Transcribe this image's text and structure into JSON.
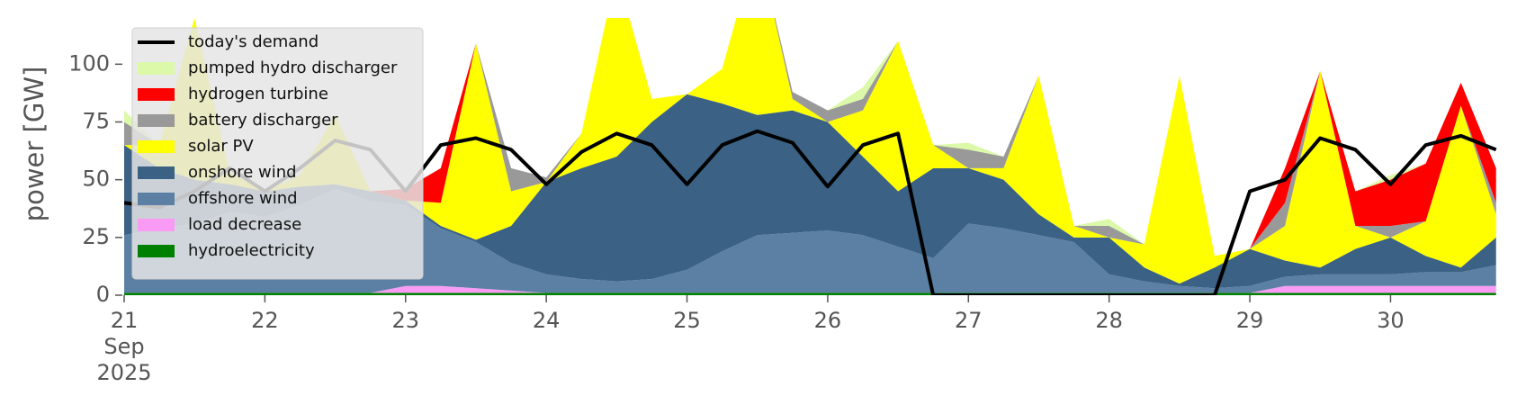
{
  "chart_data": {
    "type": "area",
    "y_label": "power [GW]",
    "legend": "upper left",
    "xlim": [
      21,
      30.95
    ],
    "xticks": [
      {
        "value": 21,
        "label": "21\nSep\n2025"
      },
      22,
      23,
      24,
      25,
      26,
      27,
      28,
      29,
      30
    ],
    "ylim": [
      0,
      120
    ],
    "yticks": [
      0,
      25,
      50,
      75,
      100
    ],
    "x": [
      21,
      21.25,
      21.5,
      21.75,
      22,
      22.25,
      22.5,
      22.75,
      23,
      23.25,
      23.5,
      23.75,
      24,
      24.25,
      24.5,
      24.75,
      25,
      25.25,
      25.5,
      25.75,
      26,
      26.25,
      26.5,
      26.75,
      27,
      27.25,
      27.5,
      27.75,
      28,
      28.25,
      28.5,
      28.75,
      29,
      29.25,
      29.5,
      29.75,
      30,
      30.25,
      30.5,
      30.75
    ],
    "series": [
      {
        "name": "hydroelectricity",
        "color": "#008000",
        "style": "area",
        "values": [
          1,
          1,
          1,
          1,
          1,
          1,
          1,
          1,
          1,
          1,
          1,
          1,
          1,
          1,
          1,
          1,
          1,
          1,
          1,
          1,
          1,
          1,
          1,
          1,
          1,
          1,
          1,
          1,
          1,
          1,
          1,
          1,
          1,
          1,
          1,
          1,
          1,
          1,
          1,
          1
        ]
      },
      {
        "name": "load decrease",
        "color": "#f99bf5",
        "style": "area",
        "values": [
          0,
          0,
          0,
          0,
          0,
          0,
          0,
          0,
          3,
          3,
          2,
          1,
          0,
          0,
          0,
          0,
          0,
          0,
          0,
          0,
          0,
          0,
          0,
          0,
          0,
          0,
          0,
          0,
          0,
          0,
          0,
          0,
          0,
          3,
          3,
          3,
          3,
          3,
          3,
          3
        ]
      },
      {
        "name": "offshore wind",
        "color": "#5b80a3",
        "style": "area",
        "values": [
          25,
          28,
          30,
          35,
          33,
          38,
          45,
          40,
          35,
          25,
          20,
          12,
          8,
          6,
          5,
          6,
          10,
          18,
          25,
          26,
          27,
          25,
          20,
          15,
          30,
          28,
          25,
          22,
          8,
          5,
          3,
          2,
          3,
          4,
          5,
          5,
          5,
          6,
          6,
          9
        ]
      },
      {
        "name": "onshore wind",
        "color": "#3b6284",
        "style": "area",
        "values": [
          39,
          26,
          19,
          12,
          11,
          8,
          2,
          4,
          2,
          1,
          1,
          16,
          40,
          48,
          54,
          68,
          76,
          64,
          52,
          53,
          47,
          34,
          24,
          39,
          24,
          21,
          9,
          2,
          16,
          6,
          1,
          9,
          16,
          7,
          3,
          11,
          16,
          7,
          2,
          12
        ]
      },
      {
        "name": "solar PV",
        "color": "#ffff00",
        "style": "area",
        "values": [
          0,
          10,
          70,
          5,
          0,
          5,
          30,
          0,
          0,
          10,
          85,
          15,
          0,
          15,
          80,
          10,
          0,
          15,
          75,
          5,
          0,
          20,
          65,
          10,
          0,
          5,
          60,
          5,
          0,
          10,
          90,
          5,
          0,
          15,
          85,
          10,
          0,
          15,
          70,
          10
        ]
      },
      {
        "name": "battery discharger",
        "color": "#999999",
        "style": "area",
        "values": [
          10,
          0,
          0,
          0,
          0,
          0,
          0,
          0,
          0,
          0,
          0,
          10,
          2,
          0,
          0,
          0,
          0,
          0,
          0,
          3,
          5,
          5,
          0,
          0,
          8,
          5,
          0,
          0,
          5,
          0,
          0,
          0,
          0,
          10,
          0,
          0,
          5,
          0,
          0,
          5
        ]
      },
      {
        "name": "hydrogen turbine",
        "color": "#ff0000",
        "style": "area",
        "values": [
          0,
          0,
          0,
          0,
          0,
          0,
          0,
          0,
          5,
          15,
          0,
          0,
          0,
          0,
          0,
          0,
          0,
          0,
          0,
          0,
          0,
          0,
          0,
          0,
          0,
          0,
          0,
          0,
          0,
          0,
          0,
          0,
          0,
          15,
          0,
          15,
          20,
          25,
          10,
          15
        ]
      },
      {
        "name": "pumped hydro discharger",
        "color": "#dcf9a9",
        "style": "area",
        "values": [
          5,
          0,
          0,
          0,
          0,
          0,
          0,
          0,
          0,
          0,
          0,
          0,
          0,
          0,
          0,
          0,
          0,
          0,
          0,
          0,
          0,
          5,
          0,
          0,
          3,
          0,
          0,
          0,
          3,
          0,
          0,
          0,
          0,
          0,
          0,
          0,
          2,
          0,
          0,
          0
        ]
      },
      {
        "name": "today's demand",
        "color": "#000000",
        "style": "line",
        "values": [
          40,
          38,
          45,
          55,
          45,
          55,
          67,
          63,
          45,
          65,
          68,
          63,
          48,
          62,
          70,
          65,
          48,
          65,
          71,
          66,
          47,
          65,
          70,
          0,
          0,
          0,
          0,
          0,
          0,
          0,
          0,
          0,
          45,
          50,
          68,
          63,
          48,
          65,
          69,
          63
        ]
      }
    ]
  }
}
